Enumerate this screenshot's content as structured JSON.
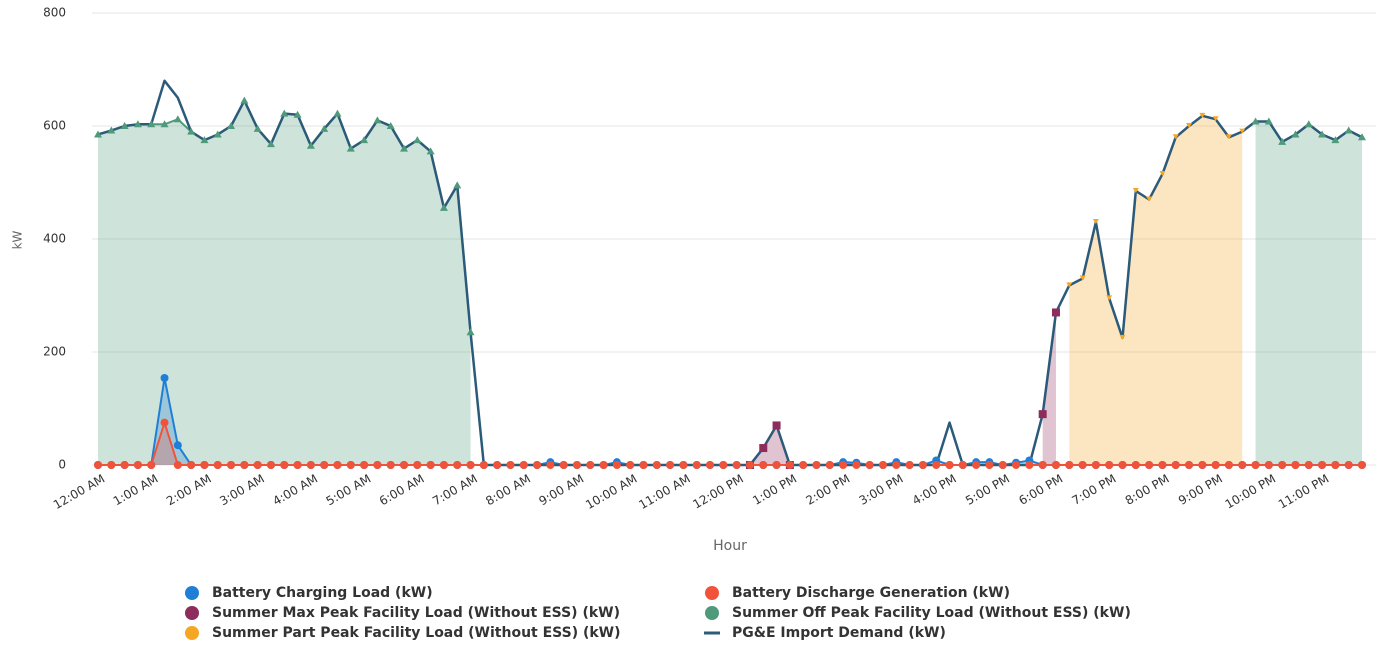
{
  "chart_data": {
    "type": "area",
    "xlabel": "Hour",
    "ylabel": "kW",
    "categories": [
      "12:00 AM",
      null,
      null,
      null,
      "1:00 AM",
      null,
      null,
      null,
      "2:00 AM",
      null,
      null,
      null,
      "3:00 AM",
      null,
      null,
      null,
      "4:00 AM",
      null,
      null,
      null,
      "5:00 AM",
      null,
      null,
      null,
      "6:00 AM",
      null,
      null,
      null,
      "7:00 AM",
      null,
      null,
      null,
      "8:00 AM",
      null,
      null,
      null,
      "9:00 AM",
      null,
      null,
      null,
      "10:00 AM",
      null,
      null,
      null,
      "11:00 AM",
      null,
      null,
      null,
      "12:00 PM",
      null,
      null,
      null,
      "1:00 PM",
      null,
      null,
      null,
      "2:00 PM",
      null,
      null,
      null,
      "3:00 PM",
      null,
      null,
      null,
      "4:00 PM",
      null,
      null,
      null,
      "5:00 PM",
      null,
      null,
      null,
      "6:00 PM",
      null,
      null,
      null,
      "7:00 PM",
      null,
      null,
      null,
      "8:00 PM",
      null,
      null,
      null,
      "9:00 PM",
      null,
      null,
      null,
      "10:00 PM",
      null,
      null,
      null,
      "11:00 PM",
      null,
      null,
      null
    ],
    "ylim": [
      0,
      800
    ],
    "yticks": [
      0,
      200,
      400,
      600,
      800
    ],
    "grid": true,
    "legend": "bottom",
    "series": [
      {
        "name": "Battery Charging Load (kW)",
        "color": "#1f7fd6",
        "type": "area",
        "marker": "circle",
        "values": [
          0,
          0,
          0,
          0,
          0,
          154,
          35,
          0,
          0,
          0,
          0,
          0,
          0,
          0,
          0,
          0,
          0,
          0,
          0,
          0,
          0,
          0,
          0,
          0,
          0,
          0,
          0,
          0,
          0,
          0,
          0,
          0,
          0,
          0,
          5,
          0,
          0,
          0,
          0,
          5,
          0,
          0,
          0,
          0,
          0,
          0,
          0,
          0,
          0,
          0,
          0,
          0,
          0,
          0,
          0,
          0,
          5,
          4,
          0,
          0,
          5,
          0,
          0,
          8,
          0,
          0,
          5,
          5,
          0,
          4,
          8,
          0,
          0,
          0,
          0,
          0,
          0,
          0,
          0,
          0,
          0,
          0,
          0,
          0,
          0,
          0,
          0,
          0,
          0,
          0,
          0,
          0,
          0,
          0,
          0,
          0
        ]
      },
      {
        "name": "Battery Discharge Generation (kW)",
        "color": "#f0533a",
        "type": "area",
        "marker": "circle",
        "values": [
          0,
          0,
          0,
          0,
          0,
          75,
          0,
          0,
          0,
          0,
          0,
          0,
          0,
          0,
          0,
          0,
          0,
          0,
          0,
          0,
          0,
          0,
          0,
          0,
          0,
          0,
          0,
          0,
          0,
          0,
          0,
          0,
          0,
          0,
          0,
          0,
          0,
          0,
          0,
          0,
          0,
          0,
          0,
          0,
          0,
          0,
          0,
          0,
          0,
          0,
          0,
          0,
          0,
          0,
          0,
          0,
          0,
          0,
          0,
          0,
          0,
          0,
          0,
          0,
          0,
          0,
          0,
          0,
          0,
          0,
          0,
          0,
          0,
          0,
          0,
          0,
          0,
          0,
          0,
          0,
          0,
          0,
          0,
          0,
          0,
          0,
          0,
          0,
          0,
          0,
          0,
          0,
          0,
          0,
          0,
          0
        ]
      },
      {
        "name": "Summer Max Peak Facility Load (Without ESS) (kW)",
        "color": "#8e2c5c",
        "type": "area",
        "marker": "square",
        "values": [
          null,
          null,
          null,
          null,
          null,
          null,
          null,
          null,
          null,
          null,
          null,
          null,
          null,
          null,
          null,
          null,
          null,
          null,
          null,
          null,
          null,
          null,
          null,
          null,
          null,
          null,
          null,
          null,
          null,
          null,
          null,
          null,
          null,
          null,
          null,
          null,
          null,
          null,
          null,
          null,
          null,
          null,
          null,
          null,
          null,
          null,
          null,
          null,
          null,
          0,
          30,
          70,
          0,
          null,
          null,
          null,
          null,
          null,
          null,
          null,
          null,
          null,
          null,
          null,
          null,
          null,
          null,
          null,
          null,
          null,
          null,
          90,
          270,
          null,
          null,
          null,
          null,
          null,
          null,
          null,
          null,
          null,
          null,
          null,
          null,
          null,
          null,
          null,
          null,
          null,
          null,
          null,
          null,
          null,
          null,
          null
        ]
      },
      {
        "name": "Summer Off Peak Facility Load (Without ESS) (kW)",
        "color": "#4e9a7a",
        "type": "area",
        "marker": "triangle",
        "values": [
          585,
          592,
          600,
          603,
          603,
          603,
          612,
          590,
          575,
          585,
          600,
          645,
          595,
          568,
          622,
          620,
          565,
          595,
          622,
          560,
          575,
          610,
          600,
          560,
          575,
          555,
          455,
          495,
          235,
          null,
          null,
          null,
          null,
          null,
          null,
          null,
          null,
          null,
          null,
          null,
          null,
          null,
          null,
          null,
          null,
          null,
          null,
          null,
          null,
          null,
          null,
          null,
          null,
          null,
          null,
          null,
          null,
          null,
          null,
          null,
          null,
          null,
          null,
          null,
          null,
          null,
          null,
          null,
          null,
          null,
          null,
          null,
          null,
          null,
          null,
          null,
          null,
          null,
          null,
          null,
          null,
          null,
          null,
          null,
          null,
          null,
          null,
          608,
          608,
          572,
          585,
          603,
          585,
          575,
          592,
          580
        ]
      },
      {
        "name": "Summer Part Peak Facility Load (Without ESS) (kW)",
        "color": "#f5a623",
        "type": "area",
        "marker": "triangle-down",
        "values": [
          null,
          null,
          null,
          null,
          null,
          null,
          null,
          null,
          null,
          null,
          null,
          null,
          null,
          null,
          null,
          null,
          null,
          null,
          null,
          null,
          null,
          null,
          null,
          null,
          null,
          null,
          null,
          null,
          null,
          null,
          null,
          null,
          null,
          null,
          null,
          null,
          null,
          null,
          null,
          null,
          null,
          null,
          null,
          null,
          null,
          null,
          null,
          null,
          null,
          null,
          null,
          null,
          null,
          null,
          null,
          null,
          null,
          null,
          null,
          null,
          null,
          null,
          null,
          null,
          null,
          null,
          null,
          null,
          null,
          null,
          null,
          null,
          null,
          318,
          330,
          430,
          295,
          225,
          485,
          470,
          515,
          580,
          600,
          618,
          612,
          580,
          590,
          null,
          null,
          null,
          null,
          null,
          null,
          null,
          null,
          null
        ]
      },
      {
        "name": "PG&E Import Demand (kW)",
        "color": "#2c5b7a",
        "type": "line",
        "values": [
          585,
          592,
          600,
          603,
          603,
          680,
          650,
          590,
          575,
          585,
          600,
          645,
          595,
          568,
          622,
          620,
          565,
          595,
          622,
          560,
          575,
          610,
          600,
          560,
          575,
          555,
          455,
          495,
          235,
          0,
          0,
          0,
          0,
          0,
          0,
          0,
          0,
          0,
          0,
          0,
          0,
          0,
          0,
          0,
          0,
          0,
          0,
          0,
          0,
          0,
          30,
          70,
          0,
          0,
          0,
          0,
          0,
          0,
          0,
          0,
          0,
          0,
          0,
          0,
          75,
          0,
          0,
          0,
          0,
          0,
          0,
          90,
          270,
          318,
          330,
          430,
          295,
          225,
          485,
          470,
          515,
          580,
          600,
          618,
          612,
          580,
          590,
          608,
          608,
          572,
          585,
          603,
          585,
          575,
          592,
          580
        ]
      }
    ]
  }
}
